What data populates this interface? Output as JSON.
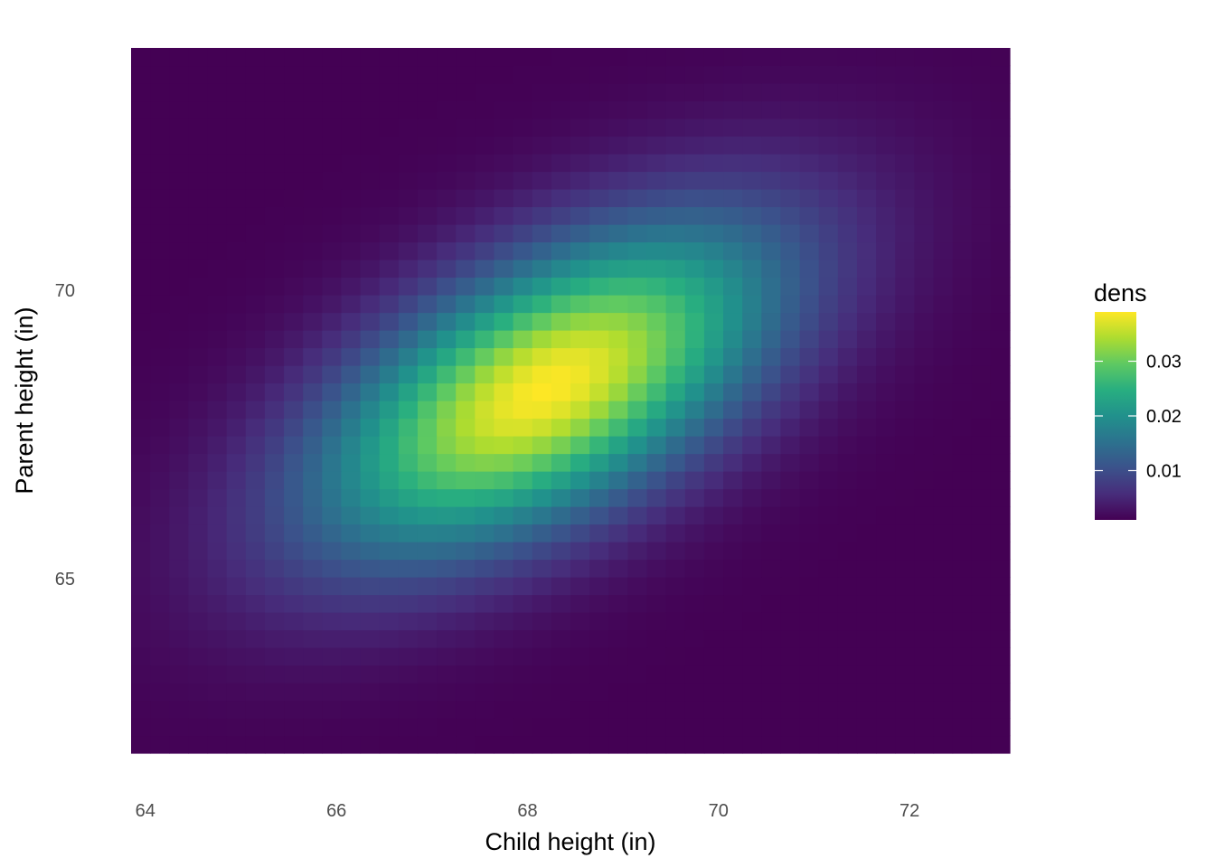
{
  "chart_data": {
    "type": "heatmap",
    "title": "",
    "xlabel": "Child height (in)",
    "ylabel": "Parent height (in)",
    "xlim": [
      63.85,
      73.05
    ],
    "ylim": [
      61.97,
      74.2
    ],
    "x_ticks": [
      64,
      66,
      68,
      70,
      72
    ],
    "x_tick_labels": [
      "64",
      "66",
      "68",
      "70",
      "72"
    ],
    "y_ticks": [
      65,
      70
    ],
    "y_tick_labels": [
      "65",
      "70"
    ],
    "grid": false,
    "colormap": "viridis",
    "density_grid": {
      "nx": 46,
      "ny": 40,
      "x_range": [
        63.85,
        73.05
      ],
      "y_range": [
        61.97,
        74.2
      ],
      "peak": {
        "x": 68.2,
        "y": 68.3,
        "value": 0.039
      },
      "sd_x": 1.65,
      "sd_y": 1.95,
      "correlation": 0.58
    },
    "legend": {
      "title": "dens",
      "placement": "right",
      "range": [
        0.001,
        0.039
      ],
      "ticks": [
        0.01,
        0.02,
        0.03
      ],
      "tick_labels": [
        "0.01",
        "0.02",
        "0.03"
      ]
    }
  }
}
